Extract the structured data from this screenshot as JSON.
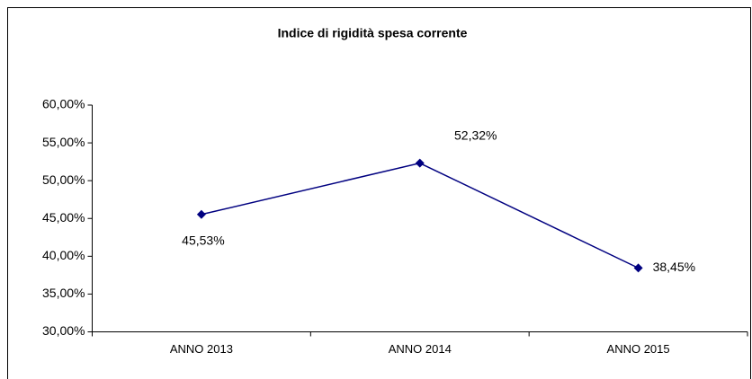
{
  "chart_data": {
    "type": "line",
    "title": "Indice di rigidità spesa corrente",
    "categories": [
      "ANNO 2013",
      "ANNO 2014",
      "ANNO 2015"
    ],
    "series": [
      {
        "name": "Indice di rigidità spesa corrente",
        "color": "#000080",
        "values": [
          45.53,
          52.32,
          38.45
        ],
        "value_labels": [
          "45,53%",
          "52,32%",
          "38,45%"
        ]
      }
    ],
    "ylim": [
      30,
      60
    ],
    "yticks": [
      {
        "value": 30,
        "label": "30,00%"
      },
      {
        "value": 35,
        "label": "35,00%"
      },
      {
        "value": 40,
        "label": "40,00%"
      },
      {
        "value": 45,
        "label": "45,00%"
      },
      {
        "value": 50,
        "label": "50,00%"
      },
      {
        "value": 55,
        "label": "55,00%"
      },
      {
        "value": 60,
        "label": "60,00%"
      }
    ],
    "grid": false,
    "legend": false
  }
}
